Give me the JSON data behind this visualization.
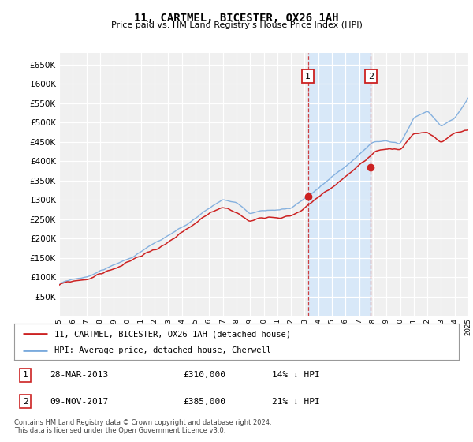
{
  "title": "11, CARTMEL, BICESTER, OX26 1AH",
  "subtitle": "Price paid vs. HM Land Registry's House Price Index (HPI)",
  "legend_line1": "11, CARTMEL, BICESTER, OX26 1AH (detached house)",
  "legend_line2": "HPI: Average price, detached house, Cherwell",
  "annotation1_date": "28-MAR-2013",
  "annotation1_price": "£310,000",
  "annotation1_hpi": "14% ↓ HPI",
  "annotation1_year": 2013.24,
  "annotation1_value": 310000,
  "annotation2_date": "09-NOV-2017",
  "annotation2_price": "£385,000",
  "annotation2_hpi": "21% ↓ HPI",
  "annotation2_year": 2017.86,
  "annotation2_value": 385000,
  "hpi_color": "#7aaadd",
  "price_color": "#cc2222",
  "background_color": "#ffffff",
  "plot_bg_color": "#f0f0f0",
  "shaded_region_color": "#d8e8f8",
  "ylim": [
    0,
    680000
  ],
  "yticks": [
    50000,
    100000,
    150000,
    200000,
    250000,
    300000,
    350000,
    400000,
    450000,
    500000,
    550000,
    600000,
    650000
  ],
  "footer": "Contains HM Land Registry data © Crown copyright and database right 2024.\nThis data is licensed under the Open Government Licence v3.0.",
  "xstart": 1995,
  "xend": 2025
}
